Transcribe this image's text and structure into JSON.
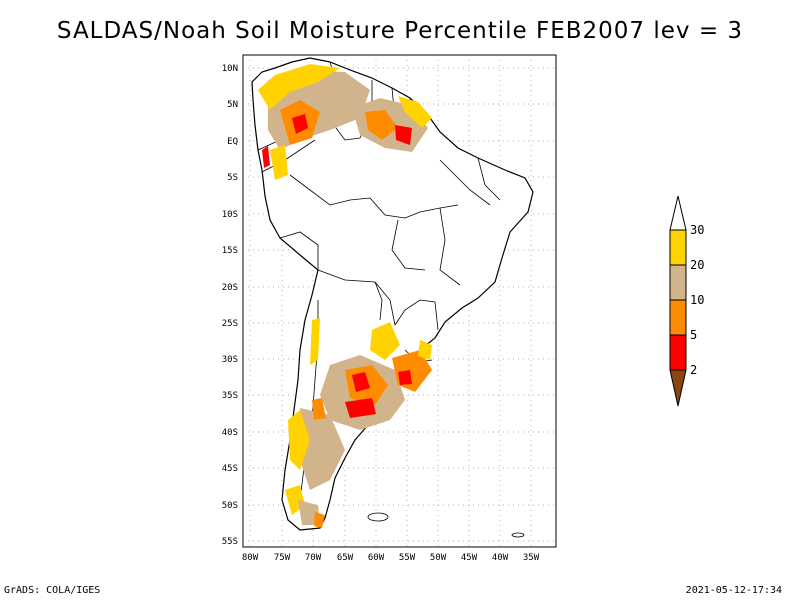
{
  "title": "SALDAS/Noah Soil Moisture Percentile FEB2007 lev = 3",
  "footer": {
    "left": "GrADS: COLA/IGES",
    "right": "2021-05-12-17:34"
  },
  "map": {
    "lat_labels": [
      "10N",
      "5N",
      "EQ",
      "5S",
      "10S",
      "15S",
      "20S",
      "25S",
      "30S",
      "35S",
      "40S",
      "45S",
      "50S",
      "55S"
    ],
    "lon_labels": [
      "80W",
      "75W",
      "70W",
      "65W",
      "60W",
      "55W",
      "50W",
      "45W",
      "40W",
      "35W"
    ]
  },
  "legend": {
    "thresholds": [
      "30",
      "20",
      "10",
      "5",
      "2"
    ],
    "colors": [
      "#ffffff",
      "#ffd200",
      "#d2b48c",
      "#ff8c00",
      "#ff0000",
      "#8b4513"
    ]
  }
}
